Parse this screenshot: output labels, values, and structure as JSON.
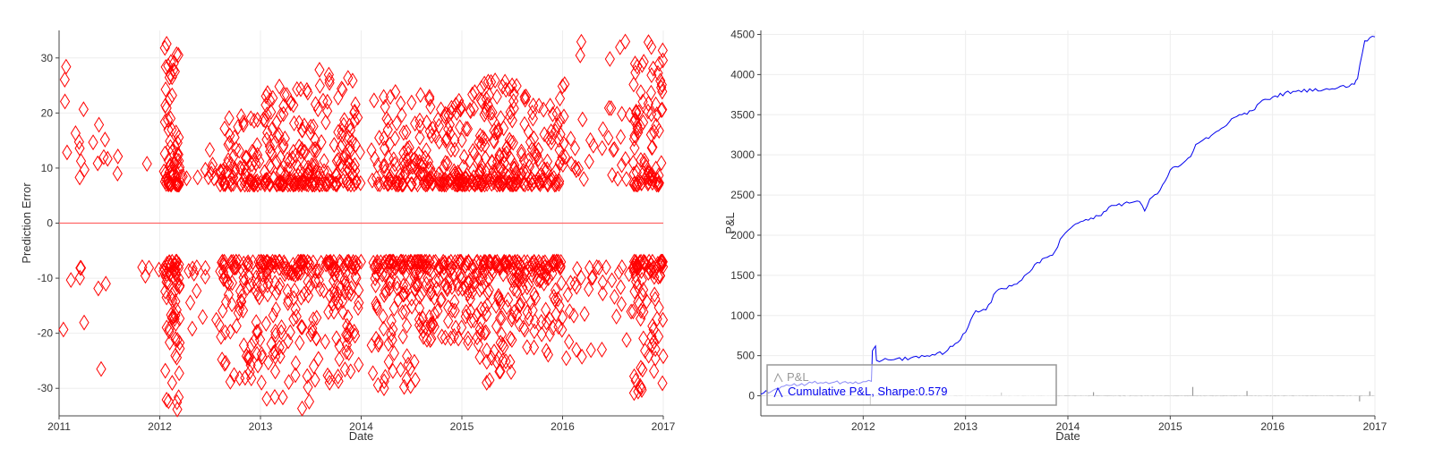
{
  "chart_data": [
    {
      "type": "scatter",
      "title": "",
      "xlabel": "Date",
      "ylabel": "Prediction Error",
      "xlim": [
        2011.0,
        2017.0
      ],
      "ylim": [
        -35,
        35
      ],
      "x_ticks": [
        "2011",
        "2012",
        "2013",
        "2014",
        "2015",
        "2016",
        "2017"
      ],
      "y_ticks": [
        -30,
        -20,
        -10,
        0,
        10,
        20,
        30
      ],
      "grid": true,
      "marker": "diamond-open",
      "colors": {
        "marker": "#ff0000",
        "zero_line": "#ff6666"
      },
      "zero_line": 0,
      "clusters": [
        {
          "x_range": [
            2011.0,
            2011.25
          ],
          "y_pos": [
            8,
            33
          ],
          "y_neg": [
            -8,
            -34
          ],
          "count": 16
        },
        {
          "x_range": [
            2011.25,
            2011.6
          ],
          "y_pos": [
            9,
            24
          ],
          "y_neg": [
            -11,
            -34
          ],
          "count": 12
        },
        {
          "x_range": [
            2011.8,
            2012.1
          ],
          "y_pos": [
            9,
            12
          ],
          "y_neg": [
            -8,
            -12
          ],
          "count": 10
        },
        {
          "x_range": [
            2012.05,
            2012.2
          ],
          "y_pos": [
            7,
            33
          ],
          "y_neg": [
            -7,
            -34
          ],
          "count": 130
        },
        {
          "x_range": [
            2012.2,
            2012.6
          ],
          "y_pos": [
            8,
            15
          ],
          "y_neg": [
            -8,
            -22
          ],
          "count": 24
        },
        {
          "x_range": [
            2012.6,
            2013.0
          ],
          "y_pos": [
            7,
            20
          ],
          "y_neg": [
            -7,
            -30
          ],
          "count": 150
        },
        {
          "x_range": [
            2013.0,
            2013.5
          ],
          "y_pos": [
            7,
            25
          ],
          "y_neg": [
            -7,
            -34
          ],
          "count": 230
        },
        {
          "x_range": [
            2013.5,
            2014.0
          ],
          "y_pos": [
            7,
            28
          ],
          "y_neg": [
            -7,
            -29
          ],
          "count": 200
        },
        {
          "x_range": [
            2014.1,
            2014.6
          ],
          "y_pos": [
            7,
            24
          ],
          "y_neg": [
            -7,
            -30
          ],
          "count": 200
        },
        {
          "x_range": [
            2014.6,
            2015.1
          ],
          "y_pos": [
            7,
            23
          ],
          "y_neg": [
            -7,
            -22
          ],
          "count": 210
        },
        {
          "x_range": [
            2015.1,
            2015.5
          ],
          "y_pos": [
            7,
            27
          ],
          "y_neg": [
            -7,
            -29
          ],
          "count": 210
        },
        {
          "x_range": [
            2015.5,
            2016.0
          ],
          "y_pos": [
            7,
            25
          ],
          "y_neg": [
            -7,
            -24
          ],
          "count": 200
        },
        {
          "x_range": [
            2016.0,
            2016.7
          ],
          "y_pos": [
            8,
            33
          ],
          "y_neg": [
            -8,
            -26
          ],
          "count": 70
        },
        {
          "x_range": [
            2016.7,
            2017.0
          ],
          "y_pos": [
            7,
            33
          ],
          "y_neg": [
            -7,
            -31
          ],
          "count": 170
        }
      ]
    },
    {
      "type": "line",
      "title": "",
      "xlabel": "Date",
      "ylabel": "P&L",
      "xlim": [
        2011.0,
        2017.0
      ],
      "ylim": [
        -250,
        4550
      ],
      "x_ticks": [
        "2012",
        "2013",
        "2014",
        "2015",
        "2016",
        "2017"
      ],
      "y_ticks": [
        0,
        500,
        1000,
        1500,
        2000,
        2500,
        3000,
        3500,
        4000,
        4500
      ],
      "grid": true,
      "legend_position": "bottom-left",
      "series": [
        {
          "name": "P&L",
          "color": "#999999",
          "style": "daily bars around zero",
          "spikes": [
            {
              "x": 2012.07,
              "y": -110
            },
            {
              "x": 2012.5,
              "y": 30
            },
            {
              "x": 2013.35,
              "y": 40
            },
            {
              "x": 2014.25,
              "y": 45
            },
            {
              "x": 2015.22,
              "y": 110
            },
            {
              "x": 2015.75,
              "y": 60
            },
            {
              "x": 2016.85,
              "y": -70
            },
            {
              "x": 2016.95,
              "y": 55
            }
          ]
        },
        {
          "name": "Cumulative P&L, Sharpe:0.579",
          "color": "#0000ee",
          "x": [
            2011.0,
            2011.15,
            2011.3,
            2011.5,
            2011.8,
            2012.0,
            2012.08,
            2012.09,
            2012.12,
            2012.13,
            2012.3,
            2012.6,
            2012.8,
            2012.9,
            2013.0,
            2013.1,
            2013.2,
            2013.3,
            2013.5,
            2013.6,
            2013.7,
            2013.85,
            2013.95,
            2014.1,
            2014.3,
            2014.45,
            2014.6,
            2014.7,
            2014.75,
            2014.8,
            2014.9,
            2015.0,
            2015.1,
            2015.2,
            2015.25,
            2015.4,
            2015.5,
            2015.6,
            2015.7,
            2015.8,
            2015.9,
            2016.0,
            2016.2,
            2016.5,
            2016.8,
            2016.83,
            2016.9,
            2017.0
          ],
          "y": [
            20,
            90,
            130,
            160,
            170,
            175,
            180,
            560,
            620,
            440,
            450,
            490,
            540,
            650,
            790,
            1060,
            1070,
            1300,
            1390,
            1520,
            1660,
            1750,
            1990,
            2150,
            2240,
            2370,
            2400,
            2420,
            2300,
            2450,
            2560,
            2810,
            2870,
            2980,
            3130,
            3240,
            3330,
            3450,
            3500,
            3550,
            3680,
            3720,
            3790,
            3810,
            3880,
            3950,
            4420,
            4470
          ]
        }
      ]
    }
  ]
}
